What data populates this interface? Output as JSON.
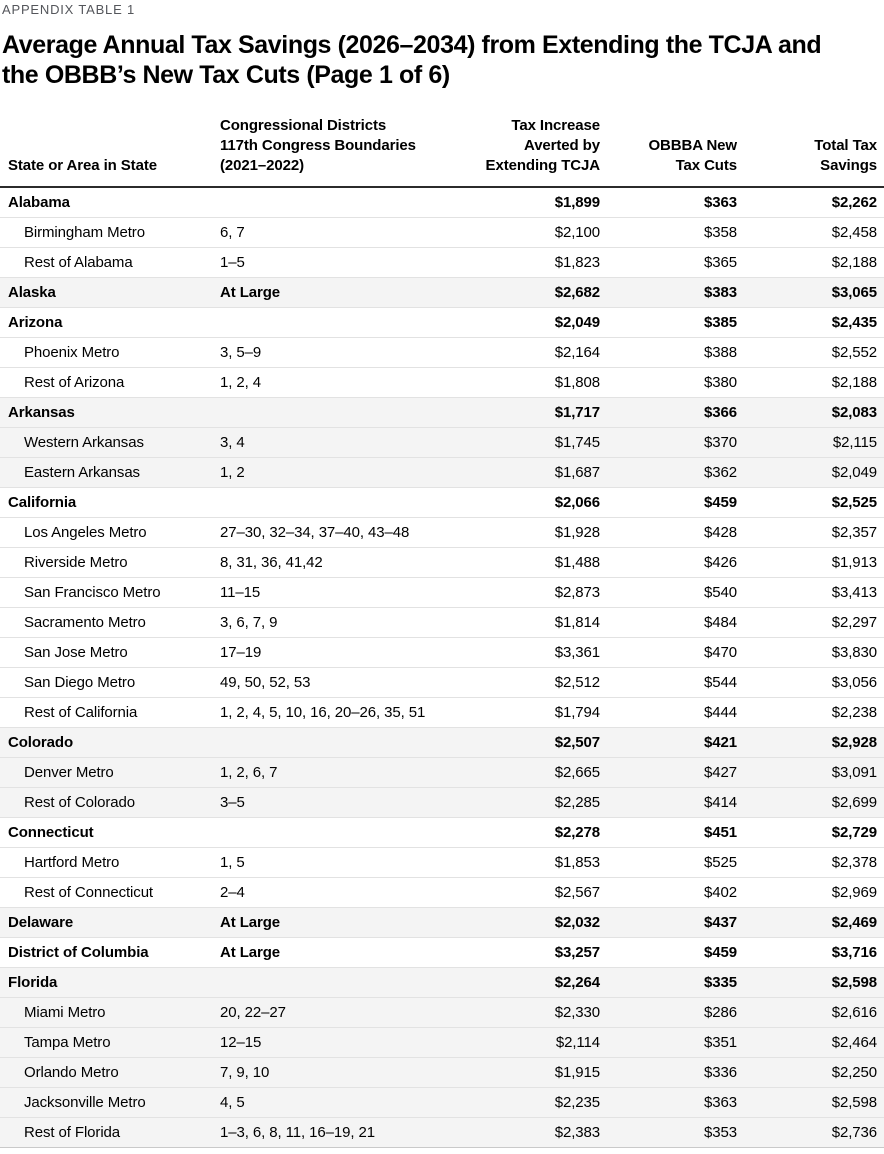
{
  "appendix_label": "APPENDIX TABLE 1",
  "title": {
    "line1": "Average Annual Tax Savings (2026–2034) from Extending the TCJA and",
    "line2": "the OBBB’s New Tax Cuts (Page 1 of 6)"
  },
  "chart_data": {
    "type": "table",
    "columns": [
      "State or Area in State",
      "Congressional Districts\n117th Congress Boundaries\n(2021–2022)",
      "Tax Increase\nAverted by\nExtending TCJA",
      "OBBBA New\nTax Cuts",
      "Total Tax\nSavings"
    ],
    "rows": [
      {
        "type": "state",
        "name": "Alabama",
        "districts": "",
        "tcja": "$1,899",
        "obbba": "$363",
        "total": "$2,262"
      },
      {
        "type": "sub",
        "name": "Birmingham Metro",
        "districts": "6, 7",
        "tcja": "$2,100",
        "obbba": "$358",
        "total": "$2,458"
      },
      {
        "type": "sub",
        "name": "Rest of Alabama",
        "districts": "1–5",
        "tcja": "$1,823",
        "obbba": "$365",
        "total": "$2,188"
      },
      {
        "type": "state",
        "name": "Alaska",
        "districts": "At Large",
        "tcja": "$2,682",
        "obbba": "$383",
        "total": "$3,065"
      },
      {
        "type": "state",
        "name": "Arizona",
        "districts": "",
        "tcja": "$2,049",
        "obbba": "$385",
        "total": "$2,435"
      },
      {
        "type": "sub",
        "name": "Phoenix Metro",
        "districts": "3, 5–9",
        "tcja": "$2,164",
        "obbba": "$388",
        "total": "$2,552"
      },
      {
        "type": "sub",
        "name": "Rest of Arizona",
        "districts": "1, 2, 4",
        "tcja": "$1,808",
        "obbba": "$380",
        "total": "$2,188"
      },
      {
        "type": "state",
        "name": "Arkansas",
        "districts": "",
        "tcja": "$1,717",
        "obbba": "$366",
        "total": "$2,083"
      },
      {
        "type": "sub",
        "name": "Western Arkansas",
        "districts": "3, 4",
        "tcja": "$1,745",
        "obbba": "$370",
        "total": "$2,115"
      },
      {
        "type": "sub",
        "name": "Eastern Arkansas",
        "districts": "1, 2",
        "tcja": "$1,687",
        "obbba": "$362",
        "total": "$2,049"
      },
      {
        "type": "state",
        "name": "California",
        "districts": "",
        "tcja": "$2,066",
        "obbba": "$459",
        "total": "$2,525"
      },
      {
        "type": "sub",
        "name": "Los Angeles Metro",
        "districts": "27–30, 32–34, 37–40, 43–48",
        "tcja": "$1,928",
        "obbba": "$428",
        "total": "$2,357"
      },
      {
        "type": "sub",
        "name": "Riverside Metro",
        "districts": "8, 31, 36, 41,42",
        "tcja": "$1,488",
        "obbba": "$426",
        "total": "$1,913"
      },
      {
        "type": "sub",
        "name": "San Francisco Metro",
        "districts": "11–15",
        "tcja": "$2,873",
        "obbba": "$540",
        "total": "$3,413"
      },
      {
        "type": "sub",
        "name": "Sacramento Metro",
        "districts": "3, 6, 7, 9",
        "tcja": "$1,814",
        "obbba": "$484",
        "total": "$2,297"
      },
      {
        "type": "sub",
        "name": "San Jose Metro",
        "districts": "17–19",
        "tcja": "$3,361",
        "obbba": "$470",
        "total": "$3,830"
      },
      {
        "type": "sub",
        "name": "San Diego Metro",
        "districts": "49, 50, 52, 53",
        "tcja": "$2,512",
        "obbba": "$544",
        "total": "$3,056"
      },
      {
        "type": "sub",
        "name": "Rest of California",
        "districts": "1, 2, 4, 5, 10, 16, 20–26, 35, 51",
        "tcja": "$1,794",
        "obbba": "$444",
        "total": "$2,238"
      },
      {
        "type": "state",
        "name": "Colorado",
        "districts": "",
        "tcja": "$2,507",
        "obbba": "$421",
        "total": "$2,928"
      },
      {
        "type": "sub",
        "name": "Denver Metro",
        "districts": "1, 2, 6, 7",
        "tcja": "$2,665",
        "obbba": "$427",
        "total": "$3,091"
      },
      {
        "type": "sub",
        "name": "Rest of Colorado",
        "districts": "3–5",
        "tcja": "$2,285",
        "obbba": "$414",
        "total": "$2,699"
      },
      {
        "type": "state",
        "name": "Connecticut",
        "districts": "",
        "tcja": "$2,278",
        "obbba": "$451",
        "total": "$2,729"
      },
      {
        "type": "sub",
        "name": "Hartford Metro",
        "districts": "1, 5",
        "tcja": "$1,853",
        "obbba": "$525",
        "total": "$2,378"
      },
      {
        "type": "sub",
        "name": "Rest of Connecticut",
        "districts": "2–4",
        "tcja": "$2,567",
        "obbba": "$402",
        "total": "$2,969"
      },
      {
        "type": "state",
        "name": "Delaware",
        "districts": "At Large",
        "tcja": "$2,032",
        "obbba": "$437",
        "total": "$2,469"
      },
      {
        "type": "state",
        "name": "District of Columbia",
        "districts": "At Large",
        "tcja": "$3,257",
        "obbba": "$459",
        "total": "$3,716"
      },
      {
        "type": "state",
        "name": "Florida",
        "districts": "",
        "tcja": "$2,264",
        "obbba": "$335",
        "total": "$2,598"
      },
      {
        "type": "sub",
        "name": "Miami Metro",
        "districts": "20, 22–27",
        "tcja": "$2,330",
        "obbba": "$286",
        "total": "$2,616"
      },
      {
        "type": "sub",
        "name": "Tampa Metro",
        "districts": "12–15",
        "tcja": "$2,114",
        "obbba": "$351",
        "total": "$2,464"
      },
      {
        "type": "sub",
        "name": "Orlando Metro",
        "districts": "7, 9, 10",
        "tcja": "$1,915",
        "obbba": "$336",
        "total": "$2,250"
      },
      {
        "type": "sub",
        "name": "Jacksonville Metro",
        "districts": "4, 5",
        "tcja": "$2,235",
        "obbba": "$363",
        "total": "$2,598"
      },
      {
        "type": "sub",
        "name": "Rest of Florida",
        "districts": "1–3, 6, 8, 11, 16–19, 21",
        "tcja": "$2,383",
        "obbba": "$353",
        "total": "$2,736"
      }
    ]
  },
  "colors": {
    "band_grey": "#f4f4f4",
    "row_divider": "#e2e2e2",
    "header_rule": "#2b2b2b",
    "label_grey": "#54565b"
  }
}
